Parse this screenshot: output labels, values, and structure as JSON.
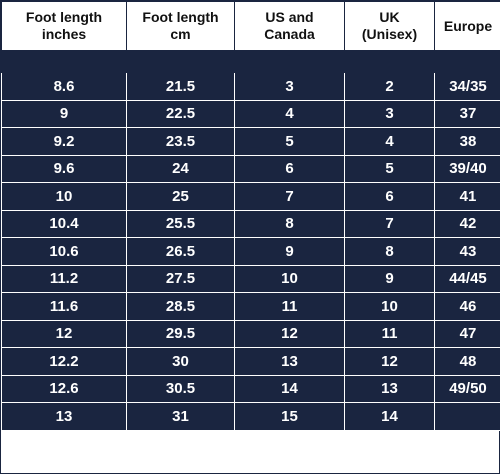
{
  "table": {
    "headers": [
      [
        "Foot length",
        "inches"
      ],
      [
        "Foot length",
        "cm"
      ],
      [
        "US and",
        "Canada"
      ],
      [
        "UK",
        "(Unisex)"
      ],
      [
        "Europe",
        ""
      ]
    ],
    "rows": [
      [
        "8.6",
        "21.5",
        "3",
        "2",
        "34/35"
      ],
      [
        "9",
        "22.5",
        "4",
        "3",
        "37"
      ],
      [
        "9.2",
        "23.5",
        "5",
        "4",
        "38"
      ],
      [
        "9.6",
        "24",
        "6",
        "5",
        "39/40"
      ],
      [
        "10",
        "25",
        "7",
        "6",
        "41"
      ],
      [
        "10.4",
        "25.5",
        "8",
        "7",
        "42"
      ],
      [
        "10.6",
        "26.5",
        "9",
        "8",
        "43"
      ],
      [
        "11.2",
        "27.5",
        "10",
        "9",
        "44/45"
      ],
      [
        "11.6",
        "28.5",
        "11",
        "10",
        "46"
      ],
      [
        "12",
        "29.5",
        "12",
        "11",
        "47"
      ],
      [
        "12.2",
        "30",
        "13",
        "12",
        "48"
      ],
      [
        "12.6",
        "30.5",
        "14",
        "13",
        "49/50"
      ],
      [
        "13",
        "31",
        "15",
        "14",
        ""
      ]
    ]
  },
  "colors": {
    "cell_background": "#1a2540",
    "cell_text": "#ffffff",
    "header_background": "#ffffff",
    "header_text": "#111111"
  }
}
